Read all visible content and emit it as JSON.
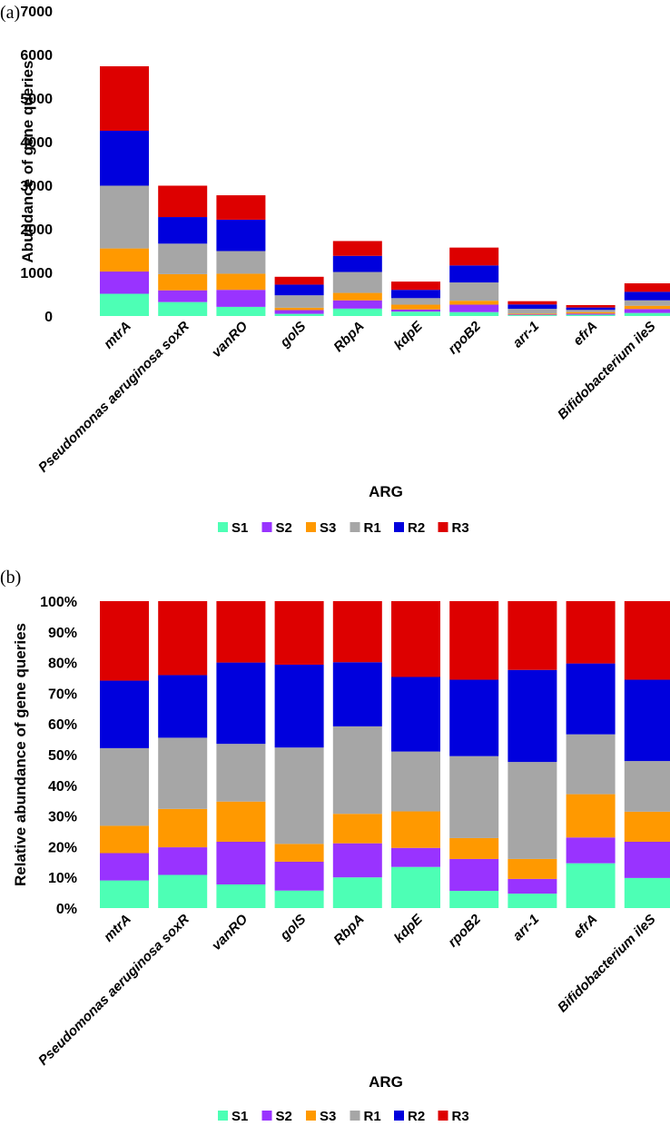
{
  "chart_data": [
    {
      "type": "bar",
      "stacked": true,
      "panel_label": "(a)",
      "title": "",
      "xlabel": "ARG",
      "ylabel": "Abundance of gene queries",
      "ylim": [
        0,
        7000
      ],
      "yticks": [
        "0",
        "1000",
        "2000",
        "3000",
        "4000",
        "5000",
        "6000",
        "7000"
      ],
      "ytick_values": [
        0,
        1000,
        2000,
        3000,
        4000,
        5000,
        6000,
        7000
      ],
      "categories": [
        "mtrA",
        "Pseudomonas aeruginosa soxR",
        "vanRO",
        "golS",
        "RbpA",
        "kdpE",
        "rpoB2",
        "arr-1",
        "efrA",
        "Bifidobacterium ileS"
      ],
      "legend_position": "bottom",
      "series": [
        {
          "name": "S1",
          "color": "#4DFFB5",
          "values": [
            510,
            320,
            210,
            50,
            170,
            100,
            90,
            20,
            30,
            70
          ]
        },
        {
          "name": "S2",
          "color": "#9933FF",
          "values": [
            510,
            270,
            390,
            85,
            190,
            50,
            170,
            15,
            25,
            90
          ]
        },
        {
          "name": "S3",
          "color": "#FF9900",
          "values": [
            530,
            370,
            370,
            55,
            170,
            110,
            90,
            20,
            35,
            75
          ]
        },
        {
          "name": "R1",
          "color": "#A6A6A6",
          "values": [
            1440,
            700,
            520,
            285,
            480,
            150,
            420,
            110,
            50,
            125
          ]
        },
        {
          "name": "R2",
          "color": "#0000DD",
          "values": [
            1260,
            610,
            720,
            245,
            370,
            190,
            390,
            100,
            55,
            195
          ]
        },
        {
          "name": "R3",
          "color": "#DD0000",
          "values": [
            1480,
            720,
            560,
            180,
            340,
            190,
            410,
            75,
            55,
            195
          ]
        }
      ]
    },
    {
      "type": "bar",
      "stacked": true,
      "panel_label": "(b)",
      "title": "",
      "xlabel": "ARG",
      "ylabel": "Relative abundance of gene queries",
      "ylim": [
        0,
        100
      ],
      "yticks": [
        "0%",
        "10%",
        "20%",
        "30%",
        "40%",
        "50%",
        "60%",
        "70%",
        "80%",
        "90%",
        "100%"
      ],
      "ytick_values": [
        0,
        10,
        20,
        30,
        40,
        50,
        60,
        70,
        80,
        90,
        100
      ],
      "categories": [
        "mtrA",
        "Pseudomonas aeruginosa soxR",
        "vanRO",
        "golS",
        "RbpA",
        "kdpE",
        "rpoB2",
        "arr-1",
        "efrA",
        "Bifidobacterium ileS"
      ],
      "legend_position": "bottom",
      "series": [
        {
          "name": "S1",
          "color": "#4DFFB5",
          "values": [
            9,
            10.8,
            7.7,
            5.7,
            10,
            13.4,
            5.6,
            4.7,
            14.6,
            9.8
          ]
        },
        {
          "name": "S2",
          "color": "#9933FF",
          "values": [
            8.9,
            9,
            13.9,
            9.4,
            11.1,
            6.2,
            10.4,
            4.8,
            8.4,
            11.8
          ]
        },
        {
          "name": "S3",
          "color": "#FF9900",
          "values": [
            8.9,
            12.5,
            13.1,
            5.8,
            9.6,
            11.9,
            6.8,
            6.5,
            14.1,
            9.8
          ]
        },
        {
          "name": "R1",
          "color": "#A6A6A6",
          "values": [
            25.3,
            23.2,
            18.8,
            31.4,
            28.5,
            19.5,
            26.7,
            31.6,
            19.5,
            16.5
          ]
        },
        {
          "name": "R2",
          "color": "#0000DD",
          "values": [
            22,
            20.4,
            26.5,
            27,
            20.9,
            24.3,
            24.9,
            30,
            23.1,
            26.5
          ]
        },
        {
          "name": "R3",
          "color": "#DD0000",
          "values": [
            25.9,
            24.1,
            20,
            20.7,
            19.9,
            24.7,
            25.6,
            22.4,
            20.3,
            25.6
          ]
        }
      ]
    }
  ]
}
